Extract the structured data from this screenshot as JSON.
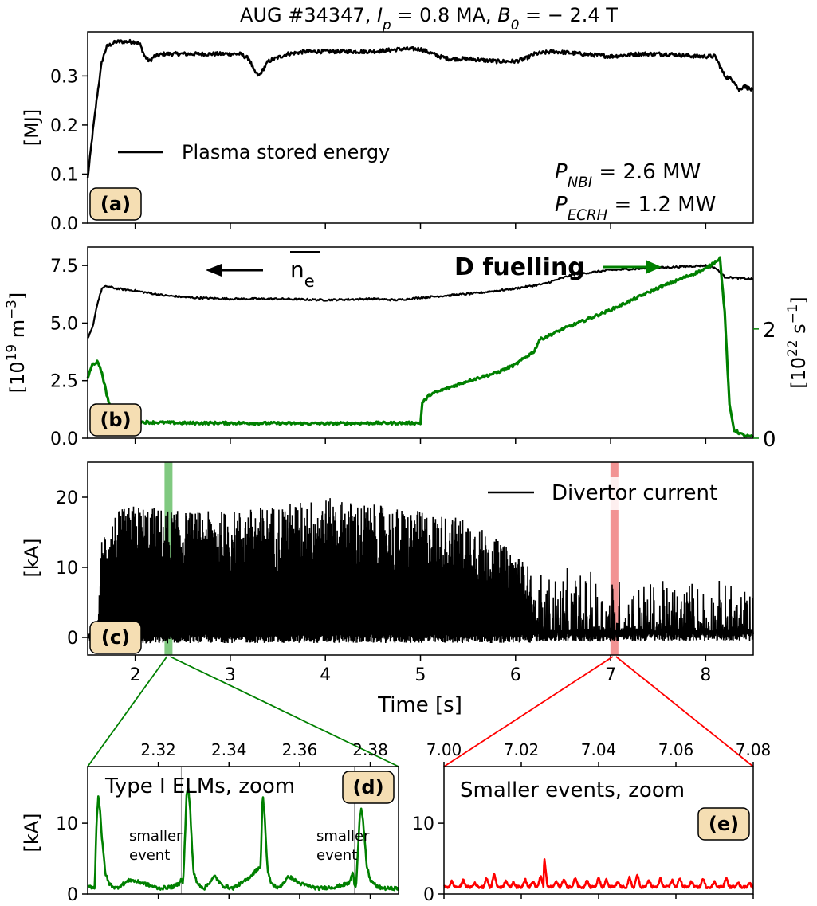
{
  "figure": {
    "title": "AUG #34347, I_p = 0.8 MA, B_0 = −2.4 T",
    "title_parts": [
      "AUG #34347, ",
      "I",
      "p",
      " = 0.8 MA, ",
      "B",
      "0",
      " = − 2.4 T"
    ]
  },
  "chart_data": [
    {
      "id": "a",
      "type": "line",
      "panel_label": "(a)",
      "ylabel": "[MJ]",
      "ylim": [
        0.0,
        0.39
      ],
      "yticks": [
        0.0,
        0.1,
        0.2,
        0.3
      ],
      "ytick_labels": [
        "0.0",
        "0.1",
        "0.2",
        "0.3"
      ],
      "xlim": [
        1.5,
        8.5
      ],
      "legend": "top-left",
      "annotations": [
        "P_NBI = 2.6 MW",
        "P_ECRH = 1.2 MW"
      ],
      "annotation_parts": [
        [
          "P",
          "NBI",
          " = 2.6 MW"
        ],
        [
          "P",
          "ECRH",
          " = 1.2 MW"
        ]
      ],
      "series": [
        {
          "name": "Plasma stored energy",
          "color": "#000000",
          "x": [
            1.5,
            1.55,
            1.6,
            1.65,
            1.7,
            1.75,
            1.8,
            2.0,
            2.05,
            2.1,
            2.15,
            2.2,
            2.3,
            2.5,
            2.8,
            3.1,
            3.2,
            3.25,
            3.3,
            3.4,
            3.6,
            3.8,
            4.0,
            4.5,
            4.8,
            5.0,
            5.2,
            5.3,
            5.5,
            5.8,
            6.0,
            6.1,
            6.2,
            6.4,
            6.7,
            7.0,
            7.3,
            7.6,
            7.9,
            8.1,
            8.2,
            8.3,
            8.35,
            8.4,
            8.5
          ],
          "y": [
            0.09,
            0.18,
            0.26,
            0.33,
            0.36,
            0.365,
            0.37,
            0.37,
            0.365,
            0.34,
            0.33,
            0.34,
            0.345,
            0.345,
            0.345,
            0.345,
            0.335,
            0.31,
            0.3,
            0.33,
            0.345,
            0.35,
            0.35,
            0.35,
            0.355,
            0.355,
            0.34,
            0.335,
            0.335,
            0.33,
            0.33,
            0.335,
            0.345,
            0.35,
            0.345,
            0.34,
            0.345,
            0.345,
            0.34,
            0.34,
            0.3,
            0.29,
            0.27,
            0.28,
            0.27
          ]
        }
      ]
    },
    {
      "id": "b",
      "type": "line",
      "panel_label": "(b)",
      "ylabel": "[10^19 m^-3]",
      "ylabel_parts": [
        "[10",
        "19",
        " m",
        "−3",
        "]"
      ],
      "ylim": [
        0.0,
        8.3
      ],
      "yticks": [
        0.0,
        2.5,
        5.0,
        7.5
      ],
      "ytick_labels": [
        "0.0",
        "2.5",
        "5.0",
        "7.5"
      ],
      "y2label": "[10^22 s^-1]",
      "y2label_parts": [
        "[10",
        "22",
        " s",
        "−1",
        "]"
      ],
      "y2lim": [
        0.0,
        3.5
      ],
      "y2ticks": [
        0,
        2
      ],
      "y2tick_labels": [
        "0",
        "2"
      ],
      "xlim": [
        1.5,
        8.5
      ],
      "annotations": [
        "n_e",
        "D fuelling"
      ],
      "series": [
        {
          "name": "n_e",
          "color": "#000000",
          "axis": "left",
          "x": [
            1.5,
            1.55,
            1.6,
            1.65,
            1.7,
            1.8,
            2.0,
            2.3,
            2.6,
            3.0,
            3.5,
            4.0,
            4.5,
            4.75,
            5.0,
            5.3,
            5.6,
            6.0,
            6.3,
            6.6,
            7.0,
            7.5,
            8.0,
            8.1,
            8.2,
            8.5
          ],
          "y": [
            4.3,
            4.8,
            5.8,
            6.5,
            6.6,
            6.5,
            6.4,
            6.2,
            6.1,
            6.05,
            6.05,
            6.0,
            6.05,
            6.0,
            6.1,
            6.2,
            6.3,
            6.5,
            6.7,
            7.1,
            7.3,
            7.4,
            7.5,
            7.4,
            7.0,
            6.9
          ]
        },
        {
          "name": "D fuelling",
          "color": "#008000",
          "axis": "right",
          "x": [
            1.5,
            1.55,
            1.6,
            1.65,
            1.7,
            1.75,
            1.8,
            2.0,
            2.5,
            3.0,
            4.0,
            4.5,
            5.0,
            5.02,
            5.1,
            5.5,
            5.8,
            6.0,
            6.2,
            6.25,
            6.5,
            7.0,
            7.5,
            8.0,
            8.15,
            8.2,
            8.25,
            8.3,
            8.4,
            8.5
          ],
          "y": [
            1.1,
            1.35,
            1.4,
            1.2,
            0.8,
            0.5,
            0.35,
            0.3,
            0.28,
            0.28,
            0.27,
            0.28,
            0.28,
            0.65,
            0.8,
            1.05,
            1.2,
            1.35,
            1.6,
            1.8,
            2.0,
            2.35,
            2.75,
            3.1,
            3.3,
            2.3,
            0.6,
            0.15,
            0.05,
            0.02
          ]
        }
      ]
    },
    {
      "id": "c",
      "type": "line",
      "panel_label": "(c)",
      "ylabel": "[kA]",
      "xlabel": "Time [s]",
      "ylim": [
        -2.5,
        25
      ],
      "yticks": [
        0,
        10,
        20
      ],
      "ytick_labels": [
        "0",
        "10",
        "20"
      ],
      "xlim": [
        1.5,
        8.5
      ],
      "xticks": [
        2,
        3,
        4,
        5,
        6,
        7,
        8
      ],
      "xtick_labels": [
        "2",
        "3",
        "4",
        "5",
        "6",
        "7",
        "8"
      ],
      "legend": "top-right",
      "highlights": [
        {
          "x": 2.35,
          "color": "#6abf6a"
        },
        {
          "x": 7.04,
          "color": "#f08080"
        }
      ],
      "series": [
        {
          "name": "Divertor current",
          "color": "#000000",
          "envelope_x": [
            1.5,
            1.6,
            1.65,
            1.8,
            2.0,
            2.5,
            3.0,
            3.5,
            4.0,
            4.5,
            5.0,
            5.5,
            6.0,
            6.15,
            6.2,
            6.5,
            7.0,
            7.5,
            8.0,
            8.5
          ],
          "envelope_upper": [
            0.5,
            1.0,
            15,
            18,
            19,
            18,
            18,
            19,
            20,
            19,
            18,
            17,
            12,
            10,
            5,
            6,
            5,
            4,
            5,
            3
          ],
          "envelope_lower": [
            -0.5,
            -1.0,
            -1.5,
            -1.5,
            -1.0,
            -0.8,
            -0.8,
            -0.8,
            -0.8,
            -0.8,
            -0.8,
            -0.8,
            -0.8,
            -0.8,
            -0.6,
            -0.6,
            -0.6,
            -0.5,
            -0.5,
            -0.5
          ]
        }
      ]
    },
    {
      "id": "d",
      "type": "line",
      "panel_label": "(d)",
      "title": "Type I ELMs, zoom",
      "ylabel": "[kA]",
      "ylim": [
        0,
        18
      ],
      "yticks": [
        0,
        10
      ],
      "ytick_labels": [
        "0",
        "10"
      ],
      "xlim": [
        2.3,
        2.388
      ],
      "xticks": [
        2.32,
        2.34,
        2.36,
        2.38
      ],
      "xtick_labels": [
        "2.32",
        "2.34",
        "2.36",
        "2.38"
      ],
      "annotations": [
        "smaller event",
        "smaller event"
      ],
      "annotation_lines": [
        [
          "smaller",
          "event"
        ],
        [
          "smaller",
          "event"
        ]
      ],
      "event_lines_x": [
        2.3265,
        2.3755
      ],
      "series": [
        {
          "name": "Type I ELMs",
          "color": "#008000",
          "x": [
            2.3,
            2.302,
            2.3025,
            2.303,
            2.3035,
            2.304,
            2.305,
            2.306,
            2.308,
            2.312,
            2.316,
            2.32,
            2.324,
            2.326,
            2.3265,
            2.327,
            2.328,
            2.3285,
            2.329,
            2.3295,
            2.33,
            2.331,
            2.333,
            2.336,
            2.338,
            2.341,
            2.345,
            2.349,
            2.3495,
            2.35,
            2.3505,
            2.351,
            2.352,
            2.354,
            2.357,
            2.36,
            2.365,
            2.37,
            2.374,
            2.375,
            2.3755,
            2.376,
            2.377,
            2.3775,
            2.378,
            2.3785,
            2.379,
            2.38,
            2.382,
            2.384,
            2.386,
            2.388
          ],
          "y": [
            1.0,
            1.0,
            10,
            14,
            12,
            8,
            3,
            1.5,
            0.8,
            2.0,
            1.5,
            0.8,
            1.0,
            1.5,
            2.5,
            1.2,
            14,
            15,
            12,
            7,
            3,
            1.5,
            0.8,
            2.5,
            1.2,
            0.8,
            2.0,
            4,
            14,
            12,
            7,
            3,
            1.5,
            0.8,
            2.5,
            1.5,
            0.8,
            1.0,
            1.5,
            3.0,
            1.5,
            1.2,
            11,
            12,
            10,
            7,
            4,
            2,
            1.0,
            0.8,
            0.8,
            0.8
          ]
        }
      ]
    },
    {
      "id": "e",
      "type": "line",
      "panel_label": "(e)",
      "title": "Smaller events, zoom",
      "ylim": [
        0,
        18
      ],
      "yticks": [
        0,
        10
      ],
      "ytick_labels": [
        "0",
        "10"
      ],
      "xlim": [
        7.0,
        7.08
      ],
      "xticks": [
        7.0,
        7.02,
        7.04,
        7.06,
        7.08
      ],
      "xtick_labels": [
        "7.00",
        "7.02",
        "7.04",
        "7.06",
        "7.08"
      ],
      "series": [
        {
          "name": "Smaller events",
          "color": "#ff0000",
          "base": 1.0,
          "peak_x": [
            7.002,
            7.005,
            7.008,
            7.011,
            7.013,
            7.016,
            7.018,
            7.021,
            7.023,
            7.025,
            7.026,
            7.029,
            7.031,
            7.034,
            7.037,
            7.04,
            7.042,
            7.045,
            7.048,
            7.05,
            7.053,
            7.056,
            7.059,
            7.061,
            7.064,
            7.067,
            7.07,
            7.073,
            7.076,
            7.079
          ],
          "peak_y": [
            1.8,
            2.0,
            1.6,
            2.3,
            3.0,
            2.0,
            1.7,
            2.2,
            1.8,
            2.5,
            4.8,
            1.8,
            2.2,
            2.4,
            2.0,
            2.3,
            2.0,
            1.7,
            2.3,
            2.8,
            2.0,
            2.2,
            2.0,
            2.4,
            1.8,
            2.2,
            1.8,
            2.3,
            1.7,
            1.6
          ]
        }
      ]
    }
  ]
}
